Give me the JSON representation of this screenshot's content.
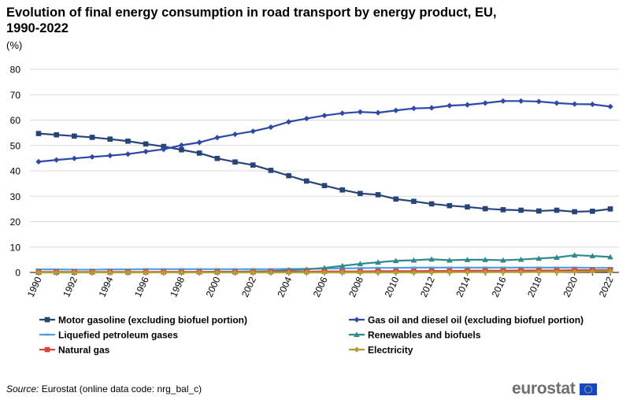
{
  "title": "Evolution of final energy consumption in road transport by energy product, EU, 1990-2022",
  "unit_label": "(%)",
  "source": {
    "prefix": "Source:",
    "text": "Eurostat (online data code: nrg_bal_c)"
  },
  "logo": {
    "text": "eurostat",
    "flag_color": "#0e47cb",
    "star_color": "#ffcc00"
  },
  "chart_data": {
    "type": "line",
    "title": "Evolution of final energy consumption in road transport by energy product, EU, 1990-2022",
    "xlabel": "",
    "ylabel": "(%)",
    "ylim": [
      0,
      80
    ],
    "yticks": [
      0,
      10,
      20,
      30,
      40,
      50,
      60,
      70,
      80
    ],
    "xtick_labels": [
      "1990",
      "1992",
      "1994",
      "1996",
      "1998",
      "2000",
      "2002",
      "2004",
      "2006",
      "2008",
      "2010",
      "2012",
      "2014",
      "2016",
      "2018",
      "2020",
      "2022"
    ],
    "x": [
      1990,
      1991,
      1992,
      1993,
      1994,
      1995,
      1996,
      1997,
      1998,
      1999,
      2000,
      2001,
      2002,
      2003,
      2004,
      2005,
      2006,
      2007,
      2008,
      2009,
      2010,
      2011,
      2012,
      2013,
      2014,
      2015,
      2016,
      2017,
      2018,
      2019,
      2020,
      2021,
      2022
    ],
    "grid": "horizontal",
    "legend_position": "bottom",
    "series": [
      {
        "name": "Motor gasoline (excluding biofuel portion)",
        "color": "#264478",
        "marker": "square",
        "values": [
          54.7,
          54.2,
          53.7,
          53.2,
          52.5,
          51.7,
          50.6,
          49.6,
          48.3,
          47.0,
          44.9,
          43.5,
          42.3,
          40.2,
          38.1,
          36.0,
          34.2,
          32.5,
          31.1,
          30.6,
          28.9,
          28.0,
          27.0,
          26.3,
          25.8,
          25.1,
          24.7,
          24.5,
          24.2,
          24.5,
          23.9,
          24.1,
          25.0
        ]
      },
      {
        "name": "Gas oil and diesel oil (excluding biofuel portion)",
        "color": "#2e48a8",
        "marker": "diamond",
        "values": [
          43.6,
          44.3,
          44.9,
          45.5,
          46.0,
          46.6,
          47.6,
          48.5,
          50.1,
          51.2,
          53.1,
          54.4,
          55.6,
          57.2,
          59.3,
          60.6,
          61.8,
          62.7,
          63.2,
          62.9,
          63.8,
          64.6,
          64.8,
          65.7,
          66.0,
          66.7,
          67.5,
          67.5,
          67.3,
          66.7,
          66.3,
          66.2,
          65.3
        ]
      },
      {
        "name": "Liquefied petroleum gases",
        "color": "#4da0e6",
        "marker": "dash",
        "values": [
          1.2,
          1.2,
          1.1,
          1.1,
          1.2,
          1.2,
          1.3,
          1.3,
          1.3,
          1.3,
          1.3,
          1.3,
          1.3,
          1.3,
          1.4,
          1.4,
          1.5,
          1.6,
          1.7,
          1.8,
          1.8,
          1.9,
          1.9,
          1.9,
          1.9,
          1.9,
          1.9,
          1.9,
          1.9,
          1.9,
          1.9,
          1.8,
          1.8
        ]
      },
      {
        "name": "Renewables and biofuels",
        "color": "#2e8a8a",
        "marker": "triangle",
        "values": [
          0.0,
          0.0,
          0.0,
          0.1,
          0.1,
          0.1,
          0.1,
          0.2,
          0.2,
          0.2,
          0.3,
          0.3,
          0.4,
          0.5,
          0.9,
          1.2,
          1.8,
          2.6,
          3.4,
          4.0,
          4.6,
          4.8,
          5.2,
          4.8,
          5.0,
          5.0,
          4.8,
          5.1,
          5.5,
          5.9,
          6.8,
          6.5,
          6.1
        ]
      },
      {
        "name": "Natural gas",
        "color": "#d9453d",
        "marker": "square",
        "values": [
          0.2,
          0.2,
          0.2,
          0.2,
          0.2,
          0.2,
          0.2,
          0.2,
          0.2,
          0.2,
          0.2,
          0.2,
          0.2,
          0.3,
          0.3,
          0.3,
          0.4,
          0.4,
          0.4,
          0.5,
          0.5,
          0.5,
          0.6,
          0.6,
          0.7,
          0.7,
          0.7,
          0.8,
          0.8,
          0.8,
          0.9,
          0.9,
          0.9
        ]
      },
      {
        "name": "Electricity",
        "color": "#b0a032",
        "marker": "diamond",
        "values": [
          0.0,
          0.0,
          0.0,
          0.0,
          0.0,
          0.0,
          0.0,
          0.0,
          0.0,
          0.0,
          0.0,
          0.0,
          0.0,
          0.0,
          0.0,
          0.0,
          0.0,
          0.0,
          0.0,
          0.0,
          0.0,
          0.0,
          0.0,
          0.1,
          0.1,
          0.1,
          0.1,
          0.1,
          0.2,
          0.2,
          0.3,
          0.4,
          0.5
        ]
      }
    ]
  }
}
